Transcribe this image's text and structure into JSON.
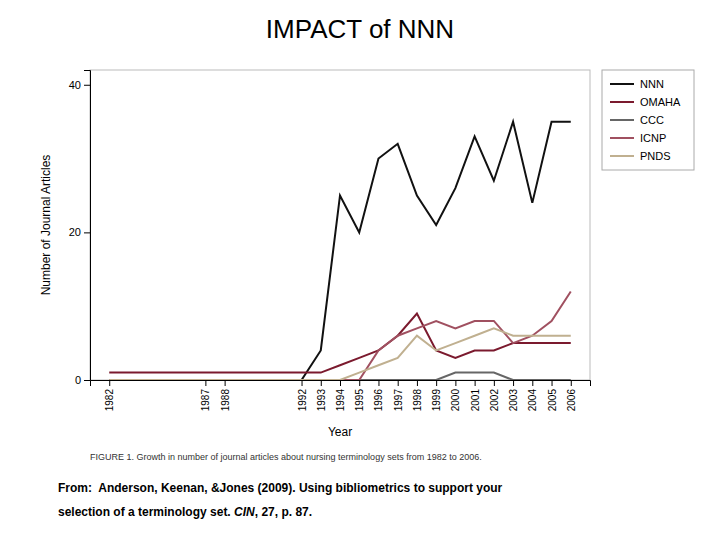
{
  "chart_data": {
    "type": "line",
    "title": "IMPACT of NNN",
    "x_label": "Year",
    "y_label": "Number of Journal Articles",
    "annotations": [
      "FIGURE 1. Growth in number of journal articles about nursing terminology sets from 1982 to 2006.",
      "From:  Anderson, Keenan, &Jones (2009). Using bibliometrics to support your",
      "selection of a terminology set. ",
      "CIN",
      ", 27, p. 87."
    ],
    "x": [
      1982,
      1987,
      1988,
      1992,
      1993,
      1994,
      1995,
      1996,
      1997,
      1998,
      1999,
      2000,
      2001,
      2002,
      2003,
      2004,
      2005,
      2006
    ],
    "series": [
      {
        "name": "NNN",
        "color": "#111111",
        "values": [
          0,
          0,
          0,
          0,
          4,
          25,
          20,
          30,
          32,
          25,
          21,
          26,
          33,
          27,
          35,
          24,
          35,
          35
        ]
      },
      {
        "name": "OMAHA",
        "color": "#7b1a2e",
        "values": [
          1,
          1,
          1,
          1,
          1,
          2,
          3,
          4,
          6,
          9,
          4,
          3,
          4,
          4,
          5,
          5,
          5,
          5
        ]
      },
      {
        "name": "CCC",
        "color": "#666666",
        "values": [
          0,
          0,
          0,
          0,
          0,
          0,
          0,
          0,
          0,
          0,
          0,
          1,
          1,
          1,
          0,
          0,
          0,
          0
        ]
      },
      {
        "name": "ICNP",
        "color": "#a05060",
        "values": [
          0,
          0,
          0,
          0,
          0,
          0,
          0,
          4,
          6,
          7,
          8,
          7,
          8,
          8,
          5,
          6,
          8,
          12
        ]
      },
      {
        "name": "PNDS",
        "color": "#c0b090",
        "values": [
          0,
          0,
          0,
          0,
          0,
          0,
          1,
          2,
          3,
          6,
          4,
          5,
          6,
          7,
          6,
          6,
          6,
          6
        ]
      }
    ],
    "xlim": [
      1981,
      2007
    ],
    "xticks": [
      1982,
      1987,
      1988,
      1992,
      1993,
      1994,
      1995,
      1996,
      1997,
      1998,
      1999,
      2000,
      2001,
      2002,
      2003,
      2004,
      2005,
      2006
    ],
    "ylim": [
      0,
      42
    ],
    "yticks": [
      0,
      20,
      40
    ],
    "grid": false,
    "legend": "right"
  }
}
